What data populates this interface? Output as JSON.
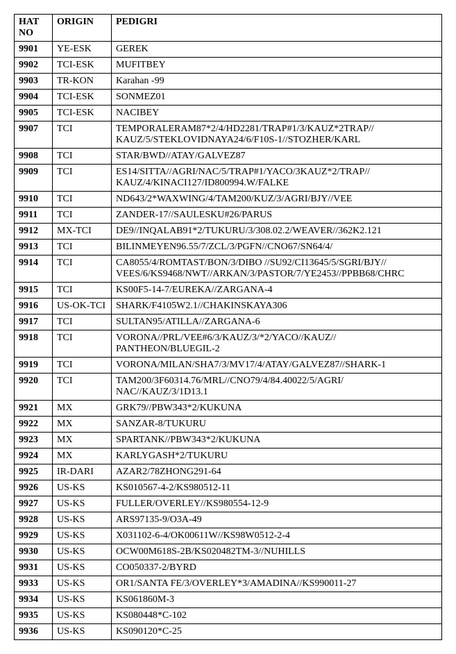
{
  "table": {
    "headers": {
      "hat_no": "HAT NO",
      "origin": "ORIGIN",
      "pedigri": "PEDIGRI"
    },
    "rows": [
      {
        "hat_no": "9901",
        "origin": "YE-ESK",
        "pedigri": "GEREK"
      },
      {
        "hat_no": "9902",
        "origin": "TCI-ESK",
        "pedigri": "MUFITBEY"
      },
      {
        "hat_no": "9903",
        "origin": "TR-KON",
        "pedigri": "Karahan -99"
      },
      {
        "hat_no": "9904",
        "origin": "TCI-ESK",
        "pedigri": "SONMEZ01"
      },
      {
        "hat_no": "9905",
        "origin": "TCI-ESK",
        "pedigri": "NACIBEY"
      },
      {
        "hat_no": "9907",
        "origin": "TCI",
        "pedigri": "TEMPORALERAM87*2/4/HD2281/TRAP#1/3/KAUZ*2TRAP// KAUZ/5/STEKLOVIDNAYA24/6/F10S-1//STOZHER/KARL"
      },
      {
        "hat_no": "9908",
        "origin": "TCI",
        "pedigri": "STAR/BWD//ATAY/GALVEZ87"
      },
      {
        "hat_no": "9909",
        "origin": "TCI",
        "pedigri": "ES14/SITTA//AGRI/NAC/5/TRAP#1/YACO/3KAUZ*2/TRAP// KAUZ/4/KINACI127/ID800994.W/FALKE"
      },
      {
        "hat_no": "9910",
        "origin": "TCI",
        "pedigri": "ND643/2*WAXWING/4/TAM200/KUZ/3/AGRI/BJY//VEE"
      },
      {
        "hat_no": "9911",
        "origin": "TCI",
        "pedigri": "ZANDER-17//SAULESKU#26/PARUS"
      },
      {
        "hat_no": "9912",
        "origin": "MX-TCI",
        "pedigri": "DE9//INQALAB91*2/TUKURU/3/308.02.2/WEAVER//362K2.121"
      },
      {
        "hat_no": "9913",
        "origin": "TCI",
        "pedigri": "BILINMEYEN96.55/7/ZCL/3/PGFN//CNO67/SN64/4/"
      },
      {
        "hat_no": "9914",
        "origin": "TCI",
        "pedigri": "CA8055/4/ROMTAST/BON/3/DIBO //SU92/CI13645/5/SGRI/BJY// VEES/6/KS9468/NWT//ARKAN/3/PASTOR/7/YE2453//PPBB68/CHRC"
      },
      {
        "hat_no": "9915",
        "origin": "TCI",
        "pedigri": "KS00F5-14-7/EUREKA//ZARGANA-4"
      },
      {
        "hat_no": "9916",
        "origin": "US-OK-TCI",
        "pedigri": "SHARK/F4105W2.1//CHAKINSKAYA306"
      },
      {
        "hat_no": "9917",
        "origin": "TCI",
        "pedigri": "SULTAN95/ATILLA//ZARGANA-6"
      },
      {
        "hat_no": "9918",
        "origin": "TCI",
        "pedigri": "VORONA//PRL/VEE#6/3/KAUZ/3/*2/YACO//KAUZ// PANTHEON/BLUEGIL-2"
      },
      {
        "hat_no": "9919",
        "origin": "TCI",
        "pedigri": "VORONA/MILAN/SHA7/3/MV17/4/ATAY/GALVEZ87//SHARK-1"
      },
      {
        "hat_no": "9920",
        "origin": "TCI",
        "pedigri": "TAM200/3F60314.76/MRL//CNO79/4/84.40022/5/AGRI/ NAC//KAUZ/3/1D13.1"
      },
      {
        "hat_no": "9921",
        "origin": "MX",
        "pedigri": "GRK79//PBW343*2/KUKUNA"
      },
      {
        "hat_no": "9922",
        "origin": "MX",
        "pedigri": "SANZAR-8/TUKURU"
      },
      {
        "hat_no": "9923",
        "origin": "MX",
        "pedigri": "SPARTANK//PBW343*2/KUKUNA"
      },
      {
        "hat_no": "9924",
        "origin": "MX",
        "pedigri": "KARLYGASH*2/TUKURU"
      },
      {
        "hat_no": "9925",
        "origin": "IR-DARI",
        "pedigri": "AZAR2/78ZHONG291-64"
      },
      {
        "hat_no": "9926",
        "origin": "US-KS",
        "pedigri": "KS010567-4-2/KS980512-11"
      },
      {
        "hat_no": "9927",
        "origin": "US-KS",
        "pedigri": "FULLER/OVERLEY//KS980554-12-9"
      },
      {
        "hat_no": "9928",
        "origin": "US-KS",
        "pedigri": "ARS97135-9/O3A-49"
      },
      {
        "hat_no": "9929",
        "origin": "US-KS",
        "pedigri": "X031102-6-4/OK00611W//KS98W0512-2-4"
      },
      {
        "hat_no": "9930",
        "origin": "US-KS",
        "pedigri": "OCW00M618S-2B/KS020482TM-3//NUHILLS"
      },
      {
        "hat_no": "9931",
        "origin": "US-KS",
        "pedigri": "CO050337-2/BYRD"
      },
      {
        "hat_no": "9933",
        "origin": "US-KS",
        "pedigri": "OR1/SANTA FE/3/OVERLEY*3/AMADINA//KS990011-27"
      },
      {
        "hat_no": "9934",
        "origin": "US-KS",
        "pedigri": "KS061860M-3"
      },
      {
        "hat_no": "9935",
        "origin": "US-KS",
        "pedigri": "KS080448*C-102"
      },
      {
        "hat_no": "9936",
        "origin": "US-KS",
        "pedigri": "KS090120*C-25"
      }
    ]
  }
}
